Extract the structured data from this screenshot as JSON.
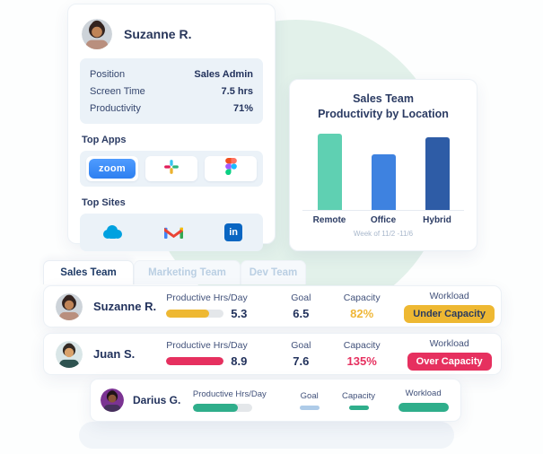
{
  "colors": {
    "mint_bg": "#E2F1EA",
    "gold": "#EEB832",
    "gold_text": "#EFB637",
    "pink": "#E6305F",
    "green": "#2FAE8B",
    "goal_pill_blue": "#AECBE8",
    "navy_text": "#22325C"
  },
  "profile_card": {
    "name": "Suzanne R.",
    "stats": [
      {
        "label": "Position",
        "value": "Sales Admin"
      },
      {
        "label": "Screen Time",
        "value": "7.5 hrs"
      },
      {
        "label": "Productivity",
        "value": "71%"
      }
    ],
    "top_apps_label": "Top Apps",
    "zoom_button_label": "zoom",
    "app_icons": [
      "zoom-app-icon",
      "slack-icon",
      "figma-icon"
    ],
    "top_sites_label": "Top Sites",
    "site_icons": [
      "salesforce-icon",
      "gmail-icon",
      "linkedin-icon"
    ],
    "linkedin_label": "in"
  },
  "chart_data": {
    "type": "bar",
    "title_line1": "Sales Team",
    "title_line2": "Productivity by Location",
    "categories": [
      "Remote",
      "Office",
      "Hybrid"
    ],
    "values": [
      100,
      73,
      95
    ],
    "value_note": "relative bar heights, no y-axis shown",
    "colors": [
      "#5FD0B2",
      "#3E82E0",
      "#2E5CA6"
    ],
    "caption": "Week of 11/2 -11/6",
    "grid": false,
    "legend": false
  },
  "tabs": [
    {
      "label": "Sales Team",
      "active": true
    },
    {
      "label": "Marketing Team",
      "active": false
    },
    {
      "label": "Dev Team",
      "active": false
    }
  ],
  "table": {
    "col_headers": {
      "productive": "Productive Hrs/Day",
      "goal": "Goal",
      "capacity": "Capacity",
      "workload": "Workload"
    },
    "rows": [
      {
        "name": "Suzanne R.",
        "productive_value": "5.3",
        "bar_fill_pct": 75,
        "bar_color": "#EEB832",
        "goal_value": "6.5",
        "capacity_value": "82%",
        "capacity_color": "#EFB637",
        "workload_badge": "Under Capacity",
        "badge_bg": "#EEB832",
        "badge_text_color": "#2A3B5F"
      },
      {
        "name": "Juan S.",
        "productive_value": "8.9",
        "bar_fill_pct": 100,
        "bar_color": "#E6305F",
        "goal_value": "7.6",
        "capacity_value": "135%",
        "capacity_color": "#E6305F",
        "workload_badge": "Over Capacity",
        "badge_bg": "#E6305F",
        "badge_text_color": "#FFFFFF"
      },
      {
        "name": "Darius G.",
        "bar_fill_pct": 76,
        "bar_color": "#2FAE8B",
        "goal_pill_color": "#AECBE8",
        "capacity_pill_color": "#2FAE8B",
        "workload_pill_color": "#2FAE8B"
      }
    ]
  },
  "avatars": {
    "suzanne": {
      "bg": "#CDD3D9",
      "hair": "#33231F",
      "skin": "#C08457",
      "shirt": "#B98F7E"
    },
    "juan": {
      "bg": "#D9E6E7",
      "hair": "#332A24",
      "skin": "#D9A26B",
      "shirt": "#2E5350"
    },
    "darius": {
      "bg": "#7B3392",
      "hair": "#201318",
      "skin": "#8A5538",
      "shirt": "#46305C"
    }
  }
}
